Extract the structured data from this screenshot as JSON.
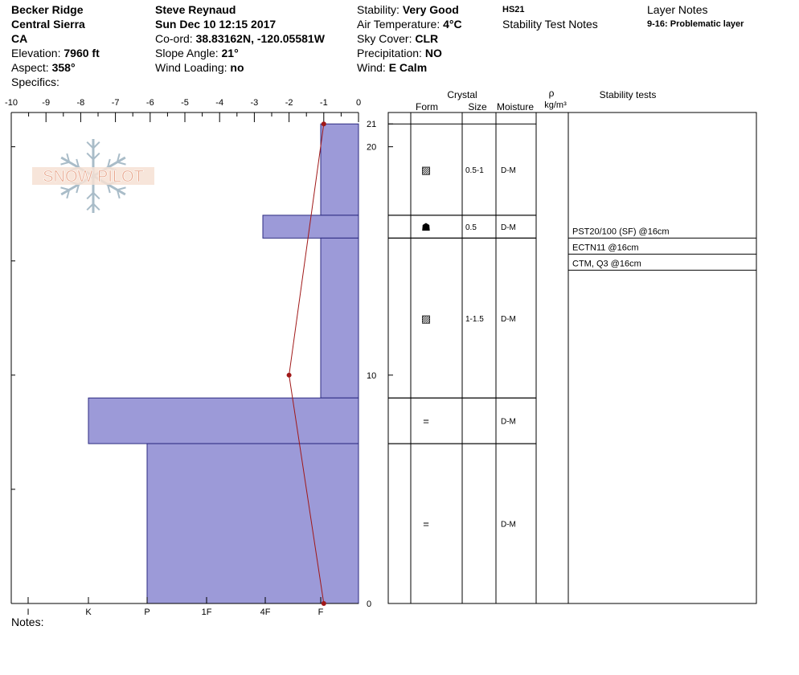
{
  "header": {
    "col1": {
      "location": "Becker Ridge",
      "range": "Central Sierra",
      "state": "CA",
      "elevation_label": "Elevation:",
      "elevation_value": "7960 ft",
      "aspect_label": "Aspect:",
      "aspect_value": "358°",
      "specifics_label": "Specifics:"
    },
    "col2": {
      "observer": "Steve Reynaud",
      "datetime": "Sun Dec 10 12:15 2017",
      "coord_label": "Co-ord:",
      "coord_value": "38.83162N, -120.05581W",
      "slope_label": "Slope Angle:",
      "slope_value": "21°",
      "wind_loading_label": "Wind Loading:",
      "wind_loading_value": "no"
    },
    "col3": {
      "stability_label": "Stability:",
      "stability_value": "Very Good",
      "air_temp_label": "Air Temperature:",
      "air_temp_value": "4°C",
      "sky_label": "Sky Cover:",
      "sky_value": "CLR",
      "precip_label": "Precipitation:",
      "precip_value": "NO",
      "wind_label": "Wind:",
      "wind_value": "E Calm"
    },
    "col4": {
      "hs": "HS21",
      "stability_notes_title": "Stability Test Notes"
    },
    "col5": {
      "layer_notes_title": "Layer Notes",
      "layer_note": "9-16: Problematic layer"
    }
  },
  "logo": {
    "text": "SNOW PILOT"
  },
  "notes_label": "Notes:",
  "table": {
    "crystal_title": "Crystal",
    "col_form": "Form",
    "col_size": "Size",
    "col_moisture": "Moisture",
    "col_rho": "ρ",
    "col_density_unit": "kg/m³",
    "col_stability": "Stability tests",
    "rows": [
      {
        "top": 21,
        "bottom": 17,
        "form_icon": "faceted-rounded-icon",
        "form_symbol": "▨",
        "size": "0.5-1",
        "moisture": "D-M"
      },
      {
        "top": 17,
        "bottom": 16,
        "form_icon": "surface-hoar-depth-icon",
        "form_symbol": "☗",
        "size": "0.5",
        "moisture": "D-M"
      },
      {
        "top": 16,
        "bottom": 9,
        "form_icon": "faceted-rounded-icon",
        "form_symbol": "▨",
        "size": "1-1.5",
        "moisture": "D-M"
      },
      {
        "top": 9,
        "bottom": 7,
        "form_icon": "melt-freeze-crust-icon",
        "form_symbol": "=",
        "size": "",
        "moisture": "D-M"
      },
      {
        "top": 7,
        "bottom": 0,
        "form_icon": "melt-freeze-crust-icon",
        "form_symbol": "=",
        "size": "",
        "moisture": "D-M"
      }
    ],
    "stability_tests": [
      "PST20/100 (SF) @16cm",
      "ECTN11 @16cm",
      "CTM, Q3 @16cm"
    ]
  },
  "colors": {
    "hardness_fill": "#9c9ad8",
    "hardness_stroke": "#2b2a80",
    "temp_line": "#a01818",
    "logo_text": "#e8a88e",
    "logo_flake": "#a9bcc8"
  },
  "chart_data": {
    "type": "bar",
    "temperature_axis": {
      "ticks": [
        -10,
        -9,
        -8,
        -7,
        -6,
        -5,
        -4,
        -3,
        -2,
        -1,
        0
      ],
      "range": [
        -10,
        0
      ]
    },
    "depth_axis": {
      "ticks": [
        0,
        10,
        20,
        21
      ],
      "range": [
        0,
        21
      ]
    },
    "hardness_axis": {
      "ticks": [
        "I",
        "K",
        "P",
        "1F",
        "4F",
        "F"
      ]
    },
    "hardness_layers": [
      {
        "top": 21,
        "bottom": 17,
        "hardness": "F"
      },
      {
        "top": 17,
        "bottom": 16,
        "hardness": "4F-"
      },
      {
        "top": 16,
        "bottom": 9,
        "hardness": "F"
      },
      {
        "top": 9,
        "bottom": 7,
        "hardness": "K-"
      },
      {
        "top": 7,
        "bottom": 0,
        "hardness": "P"
      }
    ],
    "temperature_profile": [
      {
        "depth": 21,
        "temp": -1
      },
      {
        "depth": 10,
        "temp": -2
      },
      {
        "depth": 0,
        "temp": -1
      }
    ]
  }
}
